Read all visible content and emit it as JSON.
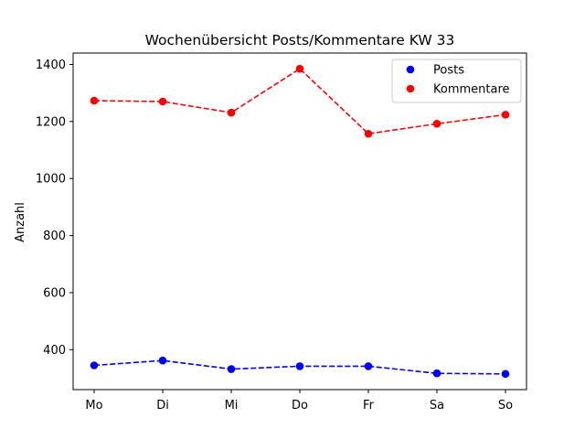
{
  "chart_data": {
    "type": "line",
    "title": "Wochenübersicht Posts/Kommentare KW 33",
    "xlabel": "",
    "ylabel": "Anzahl",
    "categories": [
      "Mo",
      "Di",
      "Mi",
      "Do",
      "Fr",
      "Sa",
      "So"
    ],
    "ylim": [
      260,
      1440
    ],
    "yticks": [
      400,
      600,
      800,
      1000,
      1200,
      1400
    ],
    "grid": false,
    "legend_position": "top-right",
    "series": [
      {
        "name": "Posts",
        "color": "#0000ff",
        "line_style": "dashed",
        "marker": "circle",
        "values": [
          345,
          362,
          332,
          342,
          342,
          317,
          315
        ]
      },
      {
        "name": "Kommentare",
        "color": "#ff0000",
        "line_style": "dashed",
        "marker": "circle",
        "values": [
          1273,
          1270,
          1231,
          1385,
          1157,
          1192,
          1224
        ]
      }
    ]
  }
}
